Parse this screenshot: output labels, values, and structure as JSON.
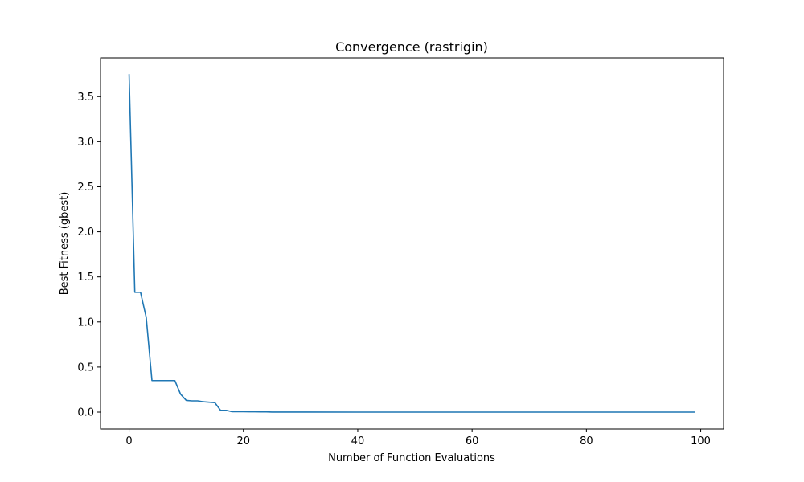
{
  "chart_data": {
    "type": "line",
    "title": "Convergence (rastrigin)",
    "xlabel": "Number of Function Evaluations",
    "ylabel": "Best Fitness (gbest)",
    "xlim": [
      -5,
      104
    ],
    "ylim": [
      -0.187,
      3.93
    ],
    "xticks": [
      0,
      20,
      40,
      60,
      80,
      100
    ],
    "yticks": [
      0.0,
      0.5,
      1.0,
      1.5,
      2.0,
      2.5,
      3.0,
      3.5
    ],
    "xtick_labels": [
      "0",
      "20",
      "40",
      "60",
      "80",
      "100"
    ],
    "ytick_labels": [
      "0.0",
      "0.5",
      "1.0",
      "1.5",
      "2.0",
      "2.5",
      "3.0",
      "3.5"
    ],
    "grid": false,
    "series": [
      {
        "color": "#1f77b4",
        "x": [
          0,
          1,
          2,
          3,
          4,
          5,
          6,
          7,
          8,
          9,
          10,
          11,
          12,
          13,
          14,
          15,
          16,
          17,
          18,
          19,
          20,
          21,
          22,
          23,
          24,
          25,
          30,
          40,
          50,
          60,
          70,
          80,
          90,
          99
        ],
        "y": [
          3.75,
          1.33,
          1.33,
          1.05,
          0.35,
          0.35,
          0.35,
          0.35,
          0.35,
          0.2,
          0.13,
          0.125,
          0.125,
          0.115,
          0.11,
          0.105,
          0.02,
          0.02,
          0.005,
          0.005,
          0.005,
          0.004,
          0.004,
          0.003,
          0.003,
          0.001,
          0.0005,
          0.0002,
          0.0001,
          0.0001,
          0.0001,
          0.0001,
          0.0001,
          0.0001
        ]
      }
    ]
  }
}
